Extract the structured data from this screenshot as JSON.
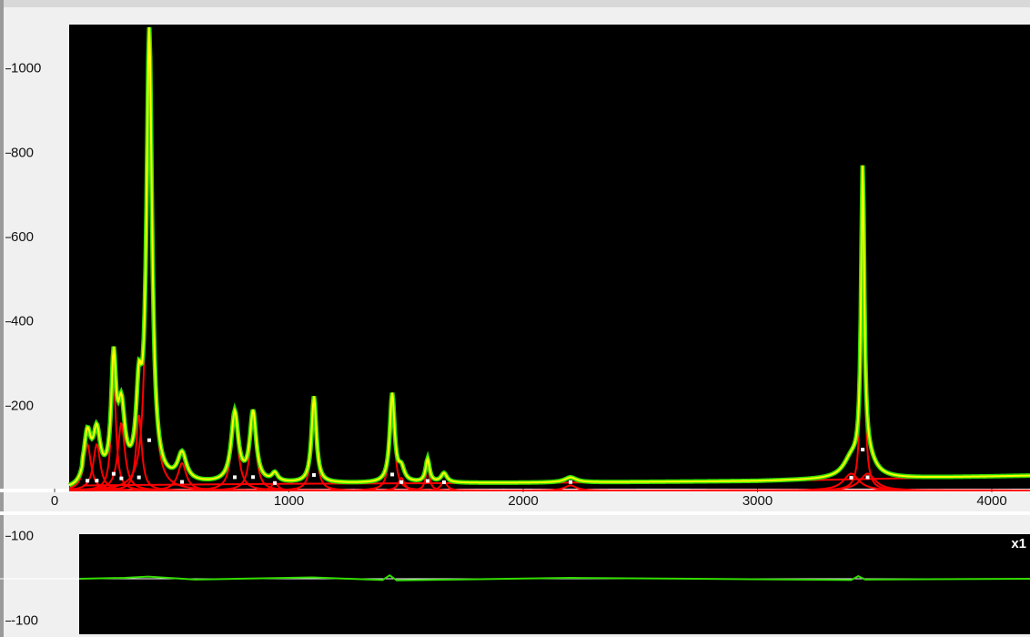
{
  "chart_data": [
    {
      "type": "spectrum",
      "xlim": [
        -233,
        4163
      ],
      "ylim": [
        0,
        1105
      ],
      "xticks": [
        0,
        1000,
        2000,
        3000,
        4000
      ],
      "yticks": [
        200,
        400,
        600,
        800,
        1000
      ],
      "peaks": {
        "center": [
          140,
          180,
          252,
          285,
          360,
          404,
          544,
          769,
          847,
          940,
          1107,
          1441,
          1480,
          1592,
          1662,
          2202,
          3400,
          3449,
          3470
        ],
        "height": [
          110,
          110,
          270,
          160,
          180,
          1060,
          65,
          165,
          165,
          20,
          205,
          210,
          30,
          55,
          22,
          12,
          40,
          700,
          40
        ],
        "width": [
          18,
          18,
          12,
          18,
          14,
          14,
          22,
          18,
          16,
          15,
          12,
          12,
          15,
          10,
          15,
          30,
          40,
          8,
          40
        ]
      },
      "baseline": {
        "x": [
          120,
          1000,
          2000,
          3000,
          4163
        ],
        "values": [
          12,
          16,
          18,
          22,
          35
        ]
      },
      "colors": {
        "measured": "#ffff00",
        "fit": "#33dd00",
        "components": "#ff0000"
      }
    },
    {
      "type": "residual",
      "label": "x1",
      "xlim": [
        -233,
        4163
      ],
      "ylim": [
        -131,
        105
      ],
      "yticks": [
        -100,
        100
      ],
      "x": [
        110,
        300,
        400,
        600,
        1100,
        1400,
        1430,
        1460,
        2200,
        3400,
        3430,
        3460,
        4163
      ],
      "values": [
        0,
        2,
        5,
        -2,
        3,
        -3,
        8,
        -4,
        2,
        -3,
        6,
        -2,
        0
      ],
      "color": "#33dd00"
    }
  ]
}
